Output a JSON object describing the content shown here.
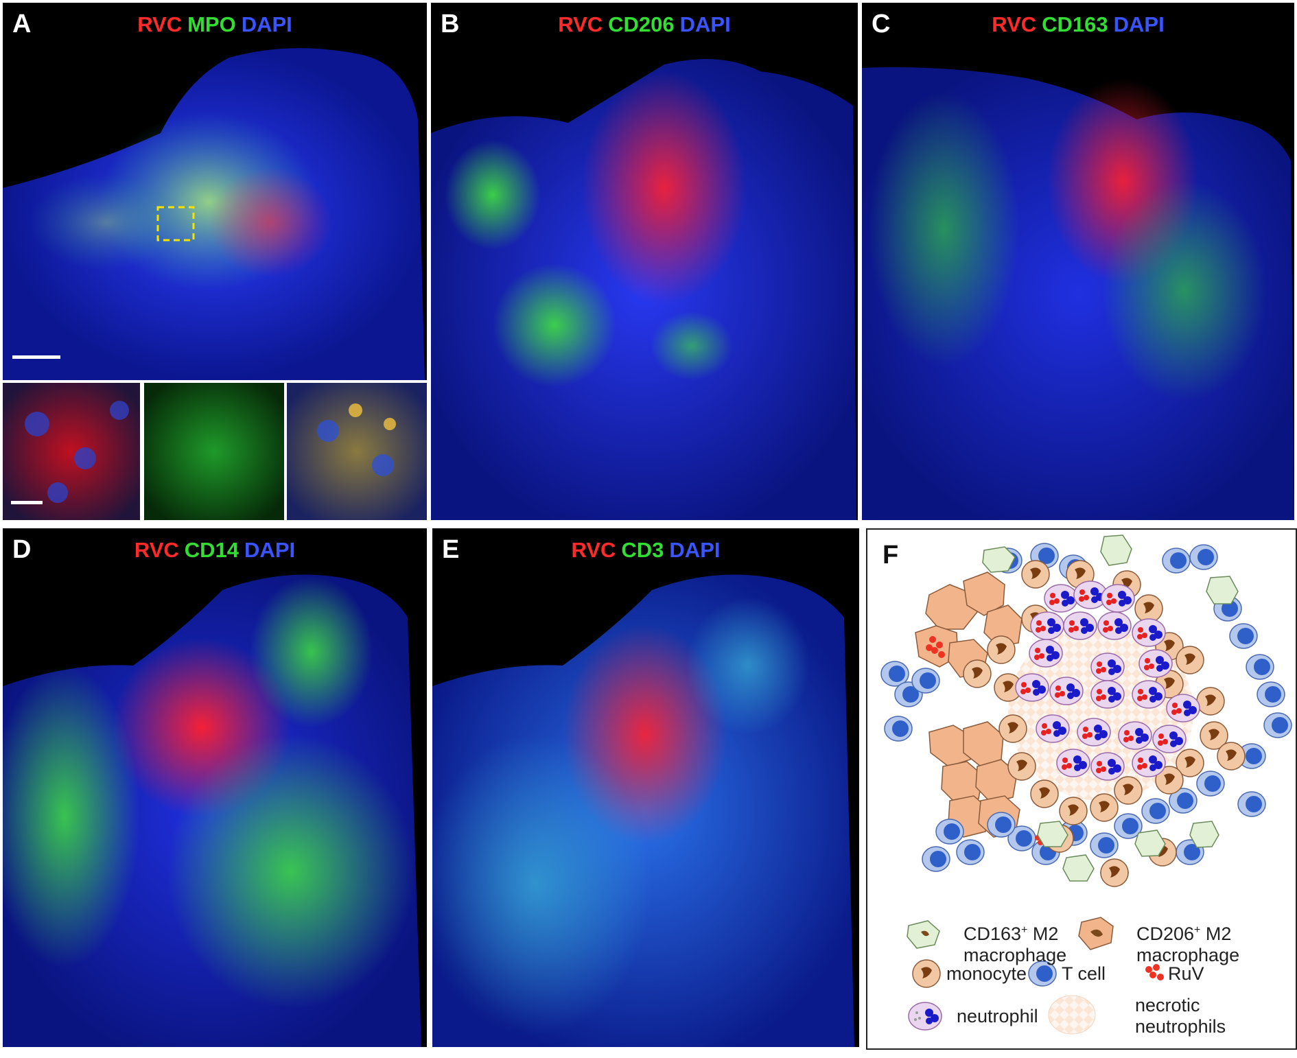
{
  "colors": {
    "rvc": "#ff2a2a",
    "green_marker": "#33dd33",
    "dapi": "#3a55ff",
    "background": "#000000"
  },
  "panels": {
    "A": {
      "letter": "A",
      "title": [
        {
          "text": "RVC",
          "color": "red"
        },
        {
          "text": "MPO",
          "color": "green"
        },
        {
          "text": "DAPI",
          "color": "blue"
        }
      ]
    },
    "B": {
      "letter": "B",
      "title": [
        {
          "text": "RVC",
          "color": "red"
        },
        {
          "text": "CD206",
          "color": "green"
        },
        {
          "text": "DAPI",
          "color": "blue"
        }
      ]
    },
    "C": {
      "letter": "C",
      "title": [
        {
          "text": "RVC",
          "color": "red"
        },
        {
          "text": "CD163",
          "color": "green"
        },
        {
          "text": "DAPI",
          "color": "blue"
        }
      ]
    },
    "D": {
      "letter": "D",
      "title": [
        {
          "text": "RVC",
          "color": "red"
        },
        {
          "text": "CD14",
          "color": "green"
        },
        {
          "text": "DAPI",
          "color": "blue"
        }
      ]
    },
    "E": {
      "letter": "E",
      "title": [
        {
          "text": "RVC",
          "color": "red"
        },
        {
          "text": "CD3",
          "color": "green"
        },
        {
          "text": "DAPI",
          "color": "blue"
        }
      ]
    },
    "F": {
      "letter": "F",
      "legend": {
        "cd163_line1": "CD163",
        "cd163_sup": "+",
        "cd163_rest": " M2",
        "cd163_line2": "macrophage",
        "cd206_line1": "CD206",
        "cd206_sup": "+",
        "cd206_rest": " M2",
        "cd206_line2": "macrophage",
        "monocyte": "monocyte",
        "tcell": "T cell",
        "ruv": "RuV",
        "neutrophil": "neutrophil",
        "necrotic_line1": "necrotic",
        "necrotic_line2": "neutrophils"
      }
    }
  }
}
